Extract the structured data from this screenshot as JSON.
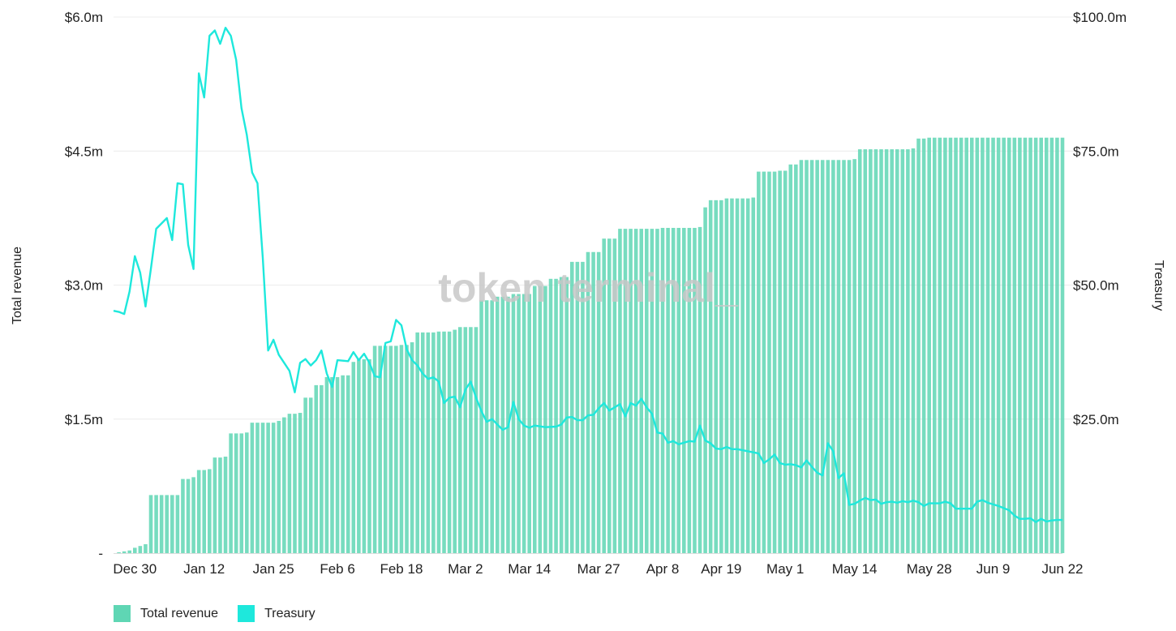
{
  "chart_data": {
    "type": "bar+line",
    "left_axis": {
      "label": "Total revenue",
      "ticks": [
        "-",
        "$1.5m",
        "$3.0m",
        "$4.5m",
        "$6.0m"
      ],
      "range": [
        0,
        6.0
      ],
      "unit": "USD millions"
    },
    "right_axis": {
      "label": "Treasury",
      "ticks": [
        "$25.0m",
        "$50.0m",
        "$75.0m",
        "$100.0m"
      ],
      "range": [
        0,
        100
      ],
      "unit": "USD millions"
    },
    "x_axis": {
      "range": [
        "2021-12-26",
        "2022-06-22"
      ],
      "ticks": [
        {
          "date": "2021-12-30",
          "label": "Dec 30"
        },
        {
          "date": "2022-01-12",
          "label": "Jan 12"
        },
        {
          "date": "2022-01-25",
          "label": "Jan 25"
        },
        {
          "date": "2022-02-06",
          "label": "Feb 6"
        },
        {
          "date": "2022-02-18",
          "label": "Feb 18"
        },
        {
          "date": "2022-03-02",
          "label": "Mar 2"
        },
        {
          "date": "2022-03-14",
          "label": "Mar 14"
        },
        {
          "date": "2022-03-27",
          "label": "Mar 27"
        },
        {
          "date": "2022-04-08",
          "label": "Apr 8"
        },
        {
          "date": "2022-04-19",
          "label": "Apr 19"
        },
        {
          "date": "2022-05-01",
          "label": "May 1"
        },
        {
          "date": "2022-05-14",
          "label": "May 14"
        },
        {
          "date": "2022-05-28",
          "label": "May 28"
        },
        {
          "date": "2022-06-09",
          "label": "Jun 9"
        },
        {
          "date": "2022-06-22",
          "label": "Jun 22"
        }
      ]
    },
    "series": [
      {
        "name": "Total revenue",
        "type": "bar",
        "axis": "left",
        "color": "#5fd6b4",
        "points": [
          [
            "2021-12-26",
            0.0
          ],
          [
            "2021-12-27",
            0.01
          ],
          [
            "2021-12-28",
            0.02
          ],
          [
            "2021-12-29",
            0.03
          ],
          [
            "2021-12-30",
            0.06
          ],
          [
            "2021-12-31",
            0.08
          ],
          [
            "2022-01-01",
            0.1
          ],
          [
            "2022-01-02",
            0.65
          ],
          [
            "2022-01-07",
            0.65
          ],
          [
            "2022-01-08",
            0.83
          ],
          [
            "2022-01-10",
            0.85
          ],
          [
            "2022-01-11",
            0.93
          ],
          [
            "2022-01-13",
            0.94
          ],
          [
            "2022-01-14",
            1.07
          ],
          [
            "2022-01-16",
            1.08
          ],
          [
            "2022-01-17",
            1.34
          ],
          [
            "2022-01-20",
            1.35
          ],
          [
            "2022-01-21",
            1.46
          ],
          [
            "2022-01-26",
            1.48
          ],
          [
            "2022-01-27",
            1.52
          ],
          [
            "2022-01-28",
            1.56
          ],
          [
            "2022-01-30",
            1.57
          ],
          [
            "2022-01-31",
            1.74
          ],
          [
            "2022-02-02",
            1.88
          ],
          [
            "2022-02-04",
            1.97
          ],
          [
            "2022-02-07",
            1.99
          ],
          [
            "2022-02-09",
            2.14
          ],
          [
            "2022-02-10",
            2.17
          ],
          [
            "2022-02-13",
            2.32
          ],
          [
            "2022-02-18",
            2.33
          ],
          [
            "2022-02-20",
            2.36
          ],
          [
            "2022-02-21",
            2.47
          ],
          [
            "2022-02-25",
            2.48
          ],
          [
            "2022-02-28",
            2.5
          ],
          [
            "2022-03-01",
            2.53
          ],
          [
            "2022-03-05",
            2.83
          ],
          [
            "2022-03-08",
            2.87
          ],
          [
            "2022-03-11",
            2.9
          ],
          [
            "2022-03-15",
            2.99
          ],
          [
            "2022-03-18",
            3.07
          ],
          [
            "2022-03-20",
            3.09
          ],
          [
            "2022-03-22",
            3.26
          ],
          [
            "2022-03-25",
            3.37
          ],
          [
            "2022-03-28",
            3.52
          ],
          [
            "2022-03-31",
            3.63
          ],
          [
            "2022-04-08",
            3.64
          ],
          [
            "2022-04-15",
            3.65
          ],
          [
            "2022-04-16",
            3.87
          ],
          [
            "2022-04-17",
            3.95
          ],
          [
            "2022-04-20",
            3.97
          ],
          [
            "2022-04-25",
            3.98
          ],
          [
            "2022-04-26",
            4.27
          ],
          [
            "2022-04-30",
            4.28
          ],
          [
            "2022-05-02",
            4.35
          ],
          [
            "2022-05-04",
            4.4
          ],
          [
            "2022-05-14",
            4.41
          ],
          [
            "2022-05-15",
            4.52
          ],
          [
            "2022-05-25",
            4.53
          ],
          [
            "2022-05-26",
            4.64
          ],
          [
            "2022-05-28",
            4.65
          ],
          [
            "2022-06-22",
            4.65
          ]
        ]
      },
      {
        "name": "Treasury",
        "type": "line",
        "axis": "right",
        "color": "#1ee8dc",
        "points": [
          [
            "2021-12-26",
            45.2
          ],
          [
            "2021-12-27",
            45.0
          ],
          [
            "2021-12-28",
            44.6
          ],
          [
            "2021-12-29",
            48.8
          ],
          [
            "2021-12-30",
            55.4
          ],
          [
            "2021-12-31",
            52.3
          ],
          [
            "2022-01-01",
            46.0
          ],
          [
            "2022-01-02",
            53.0
          ],
          [
            "2022-01-03",
            60.5
          ],
          [
            "2022-01-04",
            61.5
          ],
          [
            "2022-01-05",
            62.5
          ],
          [
            "2022-01-06",
            58.4
          ],
          [
            "2022-01-07",
            69.0
          ],
          [
            "2022-01-08",
            68.8
          ],
          [
            "2022-01-09",
            57.5
          ],
          [
            "2022-01-10",
            53.0
          ],
          [
            "2022-01-11",
            89.5
          ],
          [
            "2022-01-12",
            85.0
          ],
          [
            "2022-01-13",
            96.5
          ],
          [
            "2022-01-14",
            97.5
          ],
          [
            "2022-01-15",
            95.0
          ],
          [
            "2022-01-16",
            98.0
          ],
          [
            "2022-01-17",
            96.5
          ],
          [
            "2022-01-18",
            92.0
          ],
          [
            "2022-01-19",
            83.0
          ],
          [
            "2022-01-20",
            78.0
          ],
          [
            "2022-01-21",
            71.0
          ],
          [
            "2022-01-22",
            69.0
          ],
          [
            "2022-01-23",
            55.0
          ],
          [
            "2022-01-24",
            37.8
          ],
          [
            "2022-01-25",
            39.8
          ],
          [
            "2022-01-26",
            37.0
          ],
          [
            "2022-01-27",
            35.5
          ],
          [
            "2022-01-28",
            34.0
          ],
          [
            "2022-01-29",
            30.0
          ],
          [
            "2022-01-30",
            35.5
          ],
          [
            "2022-01-31",
            36.2
          ],
          [
            "2022-02-01",
            35.0
          ],
          [
            "2022-02-02",
            36.0
          ],
          [
            "2022-02-03",
            37.8
          ],
          [
            "2022-02-04",
            33.5
          ],
          [
            "2022-02-05",
            31.0
          ],
          [
            "2022-02-06",
            36.0
          ],
          [
            "2022-02-08",
            35.8
          ],
          [
            "2022-02-09",
            37.5
          ],
          [
            "2022-02-10",
            36.0
          ],
          [
            "2022-02-11",
            37.2
          ],
          [
            "2022-02-12",
            35.5
          ],
          [
            "2022-02-13",
            33.0
          ],
          [
            "2022-02-14",
            32.8
          ],
          [
            "2022-02-15",
            39.2
          ],
          [
            "2022-02-16",
            39.5
          ],
          [
            "2022-02-17",
            43.5
          ],
          [
            "2022-02-18",
            42.5
          ],
          [
            "2022-02-19",
            38.0
          ],
          [
            "2022-02-20",
            36.0
          ],
          [
            "2022-02-21",
            35.0
          ],
          [
            "2022-02-22",
            33.5
          ],
          [
            "2022-02-23",
            32.5
          ],
          [
            "2022-02-24",
            32.8
          ],
          [
            "2022-02-25",
            32.0
          ],
          [
            "2022-02-26",
            28.0
          ],
          [
            "2022-02-27",
            29.0
          ],
          [
            "2022-02-28",
            29.2
          ],
          [
            "2022-03-01",
            27.2
          ],
          [
            "2022-03-02",
            30.5
          ],
          [
            "2022-03-03",
            32.0
          ],
          [
            "2022-03-04",
            29.0
          ],
          [
            "2022-03-05",
            26.5
          ],
          [
            "2022-03-06",
            24.5
          ],
          [
            "2022-03-07",
            25.0
          ],
          [
            "2022-03-08",
            24.0
          ],
          [
            "2022-03-09",
            23.0
          ],
          [
            "2022-03-10",
            23.5
          ],
          [
            "2022-03-11",
            28.2
          ],
          [
            "2022-03-12",
            25.0
          ],
          [
            "2022-03-13",
            23.8
          ],
          [
            "2022-03-14",
            23.4
          ],
          [
            "2022-03-15",
            23.8
          ],
          [
            "2022-03-17",
            23.5
          ],
          [
            "2022-03-19",
            23.6
          ],
          [
            "2022-03-20",
            24.0
          ],
          [
            "2022-03-21",
            25.3
          ],
          [
            "2022-03-22",
            25.4
          ],
          [
            "2022-03-23",
            24.8
          ],
          [
            "2022-03-24",
            24.8
          ],
          [
            "2022-03-25",
            25.7
          ],
          [
            "2022-03-26",
            25.8
          ],
          [
            "2022-03-27",
            27.0
          ],
          [
            "2022-03-28",
            28.0
          ],
          [
            "2022-03-29",
            26.6
          ],
          [
            "2022-03-30",
            27.2
          ],
          [
            "2022-03-31",
            27.8
          ],
          [
            "2022-04-01",
            25.5
          ],
          [
            "2022-04-02",
            28.0
          ],
          [
            "2022-04-03",
            27.5
          ],
          [
            "2022-04-04",
            28.8
          ],
          [
            "2022-04-05",
            27.2
          ],
          [
            "2022-04-06",
            26.0
          ],
          [
            "2022-04-07",
            22.5
          ],
          [
            "2022-04-08",
            22.3
          ],
          [
            "2022-04-09",
            20.6
          ],
          [
            "2022-04-10",
            20.9
          ],
          [
            "2022-04-11",
            20.3
          ],
          [
            "2022-04-12",
            20.6
          ],
          [
            "2022-04-13",
            20.9
          ],
          [
            "2022-04-14",
            20.8
          ],
          [
            "2022-04-15",
            23.8
          ],
          [
            "2022-04-16",
            21.0
          ],
          [
            "2022-04-17",
            20.5
          ],
          [
            "2022-04-18",
            19.5
          ],
          [
            "2022-04-19",
            19.4
          ],
          [
            "2022-04-20",
            19.8
          ],
          [
            "2022-04-21",
            19.4
          ],
          [
            "2022-04-22",
            19.4
          ],
          [
            "2022-04-23",
            19.2
          ],
          [
            "2022-04-24",
            19.0
          ],
          [
            "2022-04-25",
            18.8
          ],
          [
            "2022-04-26",
            18.6
          ],
          [
            "2022-04-27",
            16.8
          ],
          [
            "2022-04-28",
            17.5
          ],
          [
            "2022-04-29",
            18.4
          ],
          [
            "2022-04-30",
            16.8
          ],
          [
            "2022-05-01",
            16.5
          ],
          [
            "2022-05-02",
            16.6
          ],
          [
            "2022-05-03",
            16.4
          ],
          [
            "2022-05-04",
            16.0
          ],
          [
            "2022-05-05",
            17.3
          ],
          [
            "2022-05-06",
            16.1
          ],
          [
            "2022-05-07",
            15.0
          ],
          [
            "2022-05-08",
            14.5
          ],
          [
            "2022-05-09",
            20.5
          ],
          [
            "2022-05-10",
            19.0
          ],
          [
            "2022-05-11",
            14.0
          ],
          [
            "2022-05-12",
            14.9
          ],
          [
            "2022-05-13",
            9.0
          ],
          [
            "2022-05-14",
            9.2
          ],
          [
            "2022-05-15",
            9.8
          ],
          [
            "2022-05-16",
            10.3
          ],
          [
            "2022-05-17",
            9.9
          ],
          [
            "2022-05-18",
            10.0
          ],
          [
            "2022-05-19",
            9.2
          ],
          [
            "2022-05-20",
            9.5
          ],
          [
            "2022-05-21",
            9.6
          ],
          [
            "2022-05-22",
            9.4
          ],
          [
            "2022-05-23",
            9.7
          ],
          [
            "2022-05-24",
            9.5
          ],
          [
            "2022-05-25",
            9.8
          ],
          [
            "2022-05-26",
            9.5
          ],
          [
            "2022-05-27",
            8.8
          ],
          [
            "2022-05-28",
            9.3
          ],
          [
            "2022-05-29",
            9.3
          ],
          [
            "2022-05-30",
            9.3
          ],
          [
            "2022-05-31",
            9.6
          ],
          [
            "2022-06-01",
            9.3
          ],
          [
            "2022-06-02",
            8.3
          ],
          [
            "2022-06-03",
            8.3
          ],
          [
            "2022-06-04",
            8.3
          ],
          [
            "2022-06-05",
            8.3
          ],
          [
            "2022-06-06",
            9.6
          ],
          [
            "2022-06-07",
            9.9
          ],
          [
            "2022-06-08",
            9.4
          ],
          [
            "2022-06-09",
            9.1
          ],
          [
            "2022-06-10",
            8.8
          ],
          [
            "2022-06-11",
            8.4
          ],
          [
            "2022-06-12",
            8.0
          ],
          [
            "2022-06-13",
            7.0
          ],
          [
            "2022-06-14",
            6.4
          ],
          [
            "2022-06-15",
            6.4
          ],
          [
            "2022-06-16",
            6.5
          ],
          [
            "2022-06-17",
            5.8
          ],
          [
            "2022-06-18",
            6.4
          ],
          [
            "2022-06-19",
            5.9
          ],
          [
            "2022-06-20",
            6.1
          ],
          [
            "2022-06-21",
            6.2
          ],
          [
            "2022-06-22",
            6.2
          ]
        ]
      }
    ],
    "grid": true,
    "legend": {
      "position": "bottom-left",
      "items": [
        {
          "label": "Total revenue",
          "color": "#5fd6b4"
        },
        {
          "label": "Treasury",
          "color": "#1ee8dc"
        }
      ]
    },
    "watermark": "token terminal_"
  }
}
